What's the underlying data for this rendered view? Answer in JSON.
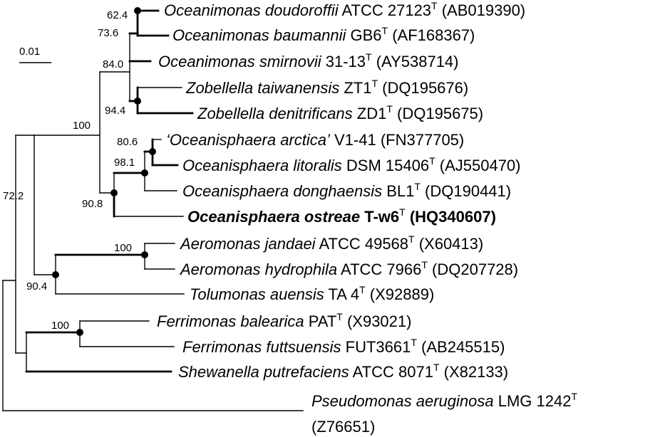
{
  "scale_bar": {
    "label": "0.01"
  },
  "taxa": [
    {
      "id": "t1",
      "genus_species": "Oceanimonas doudoroffii",
      "strain": " ATCC 27123",
      "type_strain": true,
      "accession": " (AB019390)"
    },
    {
      "id": "t2",
      "genus_species": "Oceanimonas baumannii",
      "strain": " GB6",
      "type_strain": true,
      "accession": " (AF168367)"
    },
    {
      "id": "t3",
      "genus_species": "Oceanimonas smirnovii",
      "strain": " 31-13",
      "type_strain": true,
      "accession": " (AY538714)"
    },
    {
      "id": "t4",
      "genus_species": "Zobellella taiwanensis",
      "strain": " ZT1",
      "type_strain": true,
      "accession": " (DQ195676)"
    },
    {
      "id": "t5",
      "genus_species": "Zobellella denitrificans",
      "strain": " ZD1",
      "type_strain": true,
      "accession": " (DQ195675)"
    },
    {
      "id": "t6",
      "genus_species": "‘Oceanisphaera arctica’",
      "strain": " V1-41",
      "type_strain": false,
      "accession": " (FN377705)"
    },
    {
      "id": "t7",
      "genus_species": "Oceanisphaera litoralis",
      "strain": " DSM 15406",
      "type_strain": true,
      "accession": " (AJ550470)"
    },
    {
      "id": "t8",
      "genus_species": "Oceanisphaera donghaensis",
      "strain": " BL1",
      "type_strain": true,
      "accession": " (DQ190441)"
    },
    {
      "id": "t9",
      "genus_species": "Oceanisphaera ostreae",
      "strain": " T-w6",
      "type_strain": true,
      "accession": " (HQ340607)",
      "bold": true
    },
    {
      "id": "t10",
      "genus_species": "Aeromonas jandaei",
      "strain": " ATCC 49568",
      "type_strain": true,
      "accession": " (X60413)"
    },
    {
      "id": "t11",
      "genus_species": "Aeromonas hydrophila",
      "strain": " ATCC 7966",
      "type_strain": true,
      "accession": " (DQ207728)"
    },
    {
      "id": "t12",
      "genus_species": "Tolumonas auensis",
      "strain": " TA 4",
      "type_strain": true,
      "accession": " (X92889)"
    },
    {
      "id": "t13",
      "genus_species": "Ferrimonas balearica",
      "strain": " PAT",
      "type_strain": true,
      "accession": " (X93021)"
    },
    {
      "id": "t14",
      "genus_species": "Ferrimonas futtsuensis",
      "strain": " FUT3661",
      "type_strain": true,
      "accession": " (AB245515)"
    },
    {
      "id": "t15",
      "genus_species": "Shewanella putrefaciens",
      "strain": " ATCC 8071",
      "type_strain": true,
      "accession": " (X82133)"
    },
    {
      "id": "t16",
      "genus_species": "Pseudomonas aeruginosa",
      "strain": " LMG 1242",
      "type_strain": true,
      "accession": "(Z76651)",
      "accession_wrapped": true
    }
  ],
  "type_strain_marker": "T",
  "bootstrap_values": {
    "n1": "62.4",
    "n2": "73.6",
    "n3": "84.0",
    "n4": "94.4",
    "n5": "100",
    "n6": "80.6",
    "n7": "98.1",
    "n8": "90.8",
    "n9": "72.2",
    "n10": "100",
    "n11": "90.4",
    "n12": "100"
  }
}
